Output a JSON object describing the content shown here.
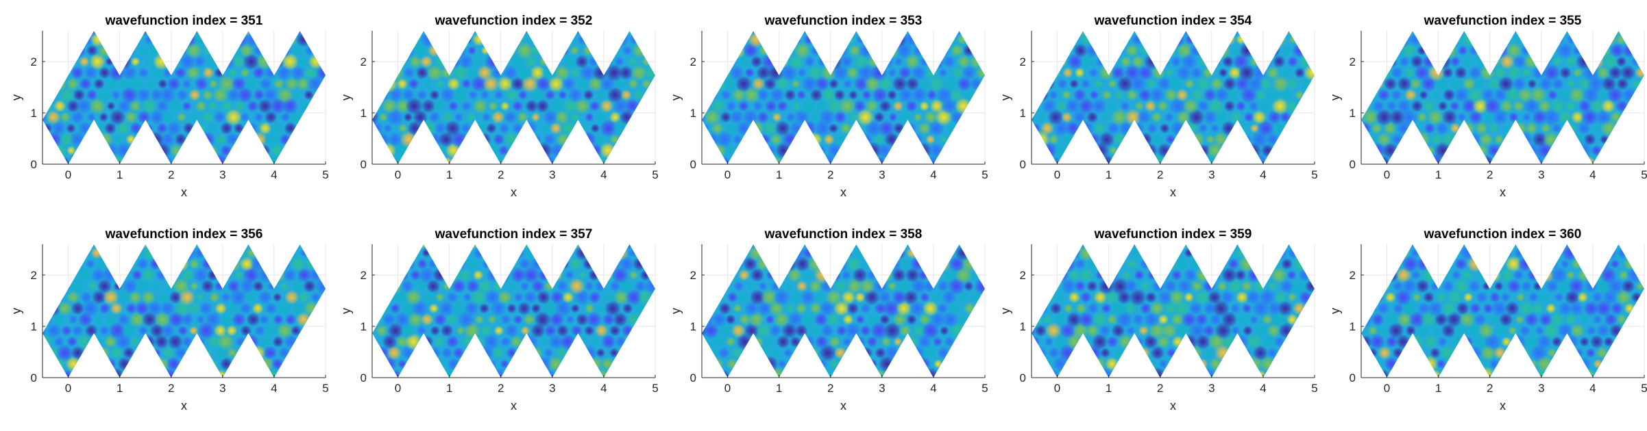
{
  "figure": {
    "layout": "2 rows x 5 columns of filled 2-D plots"
  },
  "chart_data": [
    {
      "type": "heatmap",
      "title": "wavefunction index = 351",
      "xlabel": "x",
      "ylabel": "y",
      "xlim": [
        -0.5,
        5
      ],
      "ylim": [
        0,
        2.6
      ],
      "xticks": [
        "0",
        "1",
        "2",
        "3",
        "4",
        "5"
      ],
      "yticks": [
        "0",
        "1",
        "2"
      ],
      "grid": true,
      "seed": 351
    },
    {
      "type": "heatmap",
      "title": "wavefunction index = 352",
      "xlabel": "x",
      "ylabel": "y",
      "xlim": [
        -0.5,
        5
      ],
      "ylim": [
        0,
        2.6
      ],
      "xticks": [
        "0",
        "1",
        "2",
        "3",
        "4",
        "5"
      ],
      "yticks": [
        "0",
        "1",
        "2"
      ],
      "grid": true,
      "seed": 352
    },
    {
      "type": "heatmap",
      "title": "wavefunction index = 353",
      "xlabel": "x",
      "ylabel": "y",
      "xlim": [
        -0.5,
        5
      ],
      "ylim": [
        0,
        2.6
      ],
      "xticks": [
        "0",
        "1",
        "2",
        "3",
        "4",
        "5"
      ],
      "yticks": [
        "0",
        "1",
        "2"
      ],
      "grid": true,
      "seed": 353
    },
    {
      "type": "heatmap",
      "title": "wavefunction index = 354",
      "xlabel": "x",
      "ylabel": "y",
      "xlim": [
        -0.5,
        5
      ],
      "ylim": [
        0,
        2.6
      ],
      "xticks": [
        "0",
        "1",
        "2",
        "3",
        "4",
        "5"
      ],
      "yticks": [
        "0",
        "1",
        "2"
      ],
      "grid": true,
      "seed": 354
    },
    {
      "type": "heatmap",
      "title": "wavefunction index = 355",
      "xlabel": "x",
      "ylabel": "y",
      "xlim": [
        -0.5,
        5
      ],
      "ylim": [
        0,
        2.6
      ],
      "xticks": [
        "0",
        "1",
        "2",
        "3",
        "4",
        "5"
      ],
      "yticks": [
        "0",
        "1",
        "2"
      ],
      "grid": true,
      "seed": 355
    },
    {
      "type": "heatmap",
      "title": "wavefunction index = 356",
      "xlabel": "x",
      "ylabel": "y",
      "xlim": [
        -0.5,
        5
      ],
      "ylim": [
        0,
        2.6
      ],
      "xticks": [
        "0",
        "1",
        "2",
        "3",
        "4",
        "5"
      ],
      "yticks": [
        "0",
        "1",
        "2"
      ],
      "grid": true,
      "seed": 356
    },
    {
      "type": "heatmap",
      "title": "wavefunction index = 357",
      "xlabel": "x",
      "ylabel": "y",
      "xlim": [
        -0.5,
        5
      ],
      "ylim": [
        0,
        2.6
      ],
      "xticks": [
        "0",
        "1",
        "2",
        "3",
        "4",
        "5"
      ],
      "yticks": [
        "0",
        "1",
        "2"
      ],
      "grid": true,
      "seed": 357
    },
    {
      "type": "heatmap",
      "title": "wavefunction index = 358",
      "xlabel": "x",
      "ylabel": "y",
      "xlim": [
        -0.5,
        5
      ],
      "ylim": [
        0,
        2.6
      ],
      "xticks": [
        "0",
        "1",
        "2",
        "3",
        "4",
        "5"
      ],
      "yticks": [
        "0",
        "1",
        "2"
      ],
      "grid": true,
      "seed": 358
    },
    {
      "type": "heatmap",
      "title": "wavefunction index = 359",
      "xlabel": "x",
      "ylabel": "y",
      "xlim": [
        -0.5,
        5
      ],
      "ylim": [
        0,
        2.6
      ],
      "xticks": [
        "0",
        "1",
        "2",
        "3",
        "4",
        "5"
      ],
      "yticks": [
        "0",
        "1",
        "2"
      ],
      "grid": true,
      "seed": 359
    },
    {
      "type": "heatmap",
      "title": "wavefunction index = 360",
      "xlabel": "x",
      "ylabel": "y",
      "xlim": [
        -0.5,
        5
      ],
      "ylim": [
        0,
        2.6
      ],
      "xticks": [
        "0",
        "1",
        "2",
        "3",
        "4",
        "5"
      ],
      "yticks": [
        "0",
        "1",
        "2"
      ],
      "grid": true,
      "seed": 360
    }
  ],
  "region": {
    "outline": [
      [
        -0.5,
        0.866
      ],
      [
        0,
        0
      ],
      [
        0.5,
        0.866
      ],
      [
        1,
        0
      ],
      [
        1.5,
        0.866
      ],
      [
        2,
        0
      ],
      [
        2.5,
        0.866
      ],
      [
        3,
        0
      ],
      [
        3.5,
        0.866
      ],
      [
        4,
        0
      ],
      [
        5,
        1.732
      ],
      [
        4.5,
        2.598
      ],
      [
        4,
        1.732
      ],
      [
        3.5,
        2.598
      ],
      [
        3,
        1.732
      ],
      [
        2.5,
        2.598
      ],
      [
        2,
        1.732
      ],
      [
        1.5,
        2.598
      ],
      [
        1,
        1.732
      ],
      [
        0.5,
        2.598
      ],
      [
        -0.5,
        0.866
      ]
    ]
  },
  "colors": {
    "colormap": [
      "#3e26a8",
      "#4743f8",
      "#2f6ef9",
      "#1d91e0",
      "#13b1c8",
      "#2cc098",
      "#7ec450",
      "#c7bc2c",
      "#fbbf3a",
      "#f9e21f"
    ],
    "fill_base": "#22aadb",
    "axis": "#262626",
    "grid": "#e6e6e6"
  }
}
